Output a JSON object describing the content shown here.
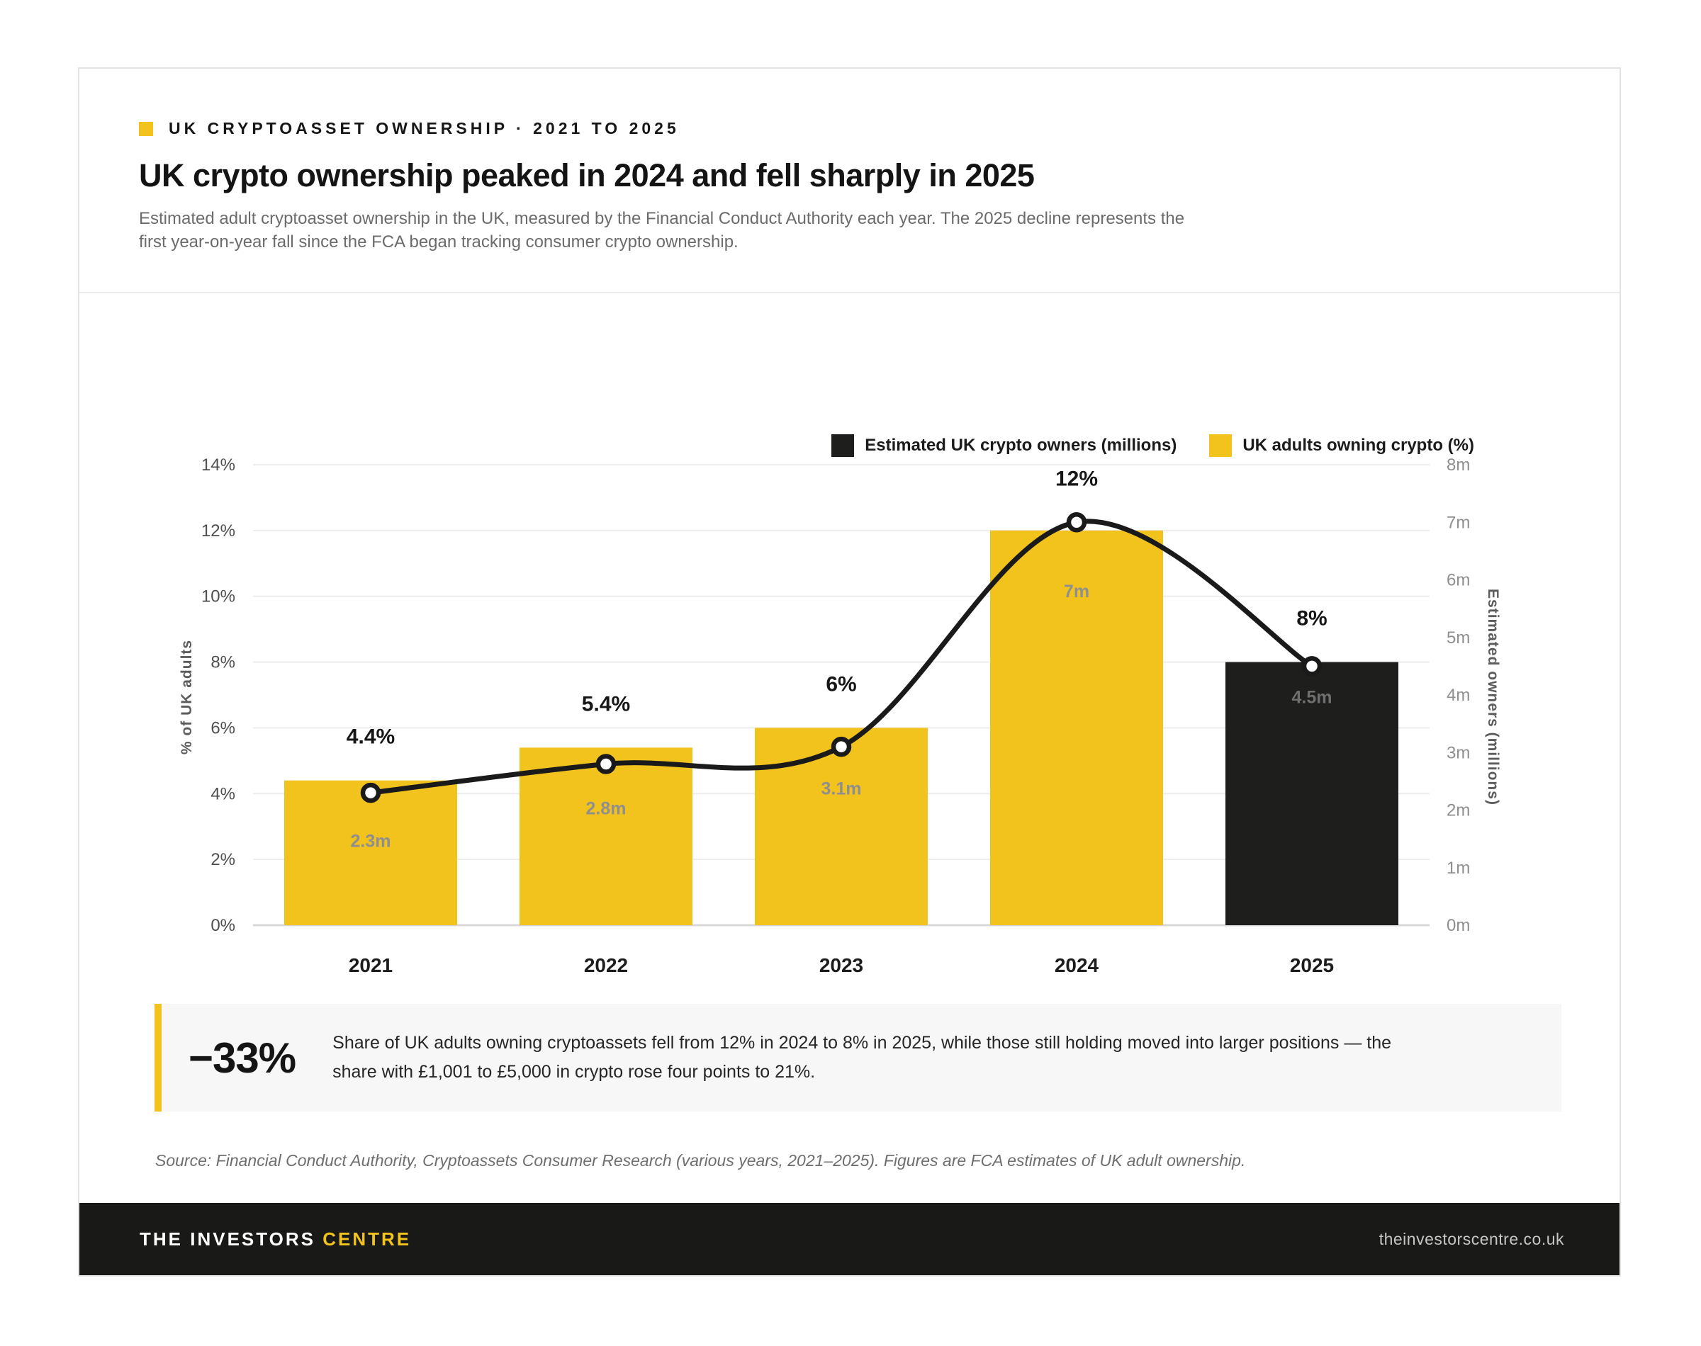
{
  "header": {
    "kicker": "UK CRYPTOASSET OWNERSHIP · 2021 TO 2025",
    "title": "UK crypto ownership peaked in 2024 and fell sharply in 2025",
    "subtitle": "Estimated adult cryptoasset ownership in the UK, measured by the Financial Conduct Authority each year. The 2025 decline represents the first year-on-year fall since the FCA began tracking consumer crypto ownership."
  },
  "legend": [
    {
      "label": "Estimated UK crypto owners (millions)",
      "color": "#1E1E1C"
    },
    {
      "label": "UK adults owning crypto (%)",
      "color": "#F2C21D"
    }
  ],
  "chart_data": {
    "type": "bar",
    "categories": [
      "2021",
      "2022",
      "2023",
      "2024",
      "2025"
    ],
    "series": [
      {
        "name": "UK adults owning crypto (%)",
        "type": "bar",
        "axis": "left",
        "values": [
          4.4,
          5.4,
          6,
          12,
          8
        ],
        "labels": [
          "4.4%",
          "5.4%",
          "6%",
          "12%",
          "8%"
        ]
      },
      {
        "name": "Estimated UK crypto owners (millions)",
        "type": "line",
        "axis": "right",
        "values": [
          2.3,
          2.8,
          3.1,
          7,
          4.5
        ],
        "labels": [
          "2.3m",
          "2.8m",
          "3.1m",
          "7m",
          "4.5m"
        ]
      }
    ],
    "left_axis": {
      "label": "% of UK adults",
      "min": 0,
      "max": 14,
      "tick_values": [
        0,
        2,
        4,
        6,
        8,
        10,
        12,
        14
      ],
      "tick_labels": [
        "0%",
        "2%",
        "4%",
        "6%",
        "8%",
        "10%",
        "12%",
        "14%"
      ]
    },
    "right_axis": {
      "label": "Estimated owners (millions)",
      "min": 0,
      "max": 8,
      "tick_values": [
        0,
        1,
        2,
        3,
        4,
        5,
        6,
        7,
        8
      ],
      "tick_labels": [
        "0m",
        "1m",
        "2m",
        "3m",
        "4m",
        "5m",
        "6m",
        "7m",
        "8m"
      ]
    },
    "highlight_category": "2025",
    "bar_color": "#F2C21D",
    "highlight_bar_color": "#1E1E1C",
    "line_color": "#1A1A1A",
    "grid": true,
    "legend_position": "top-right"
  },
  "callout": {
    "stat": "−33%",
    "text": "Share of UK adults owning cryptoassets fell from 12% in 2024 to 8% in 2025, while those still holding moved into larger positions — the share with £1,001 to £5,000 in crypto rose four points to 21%."
  },
  "source": "Source: Financial Conduct Authority, Cryptoassets Consumer Research (various years, 2021–2025). Figures are FCA estimates of UK adult ownership.",
  "footer": {
    "brand": "THE INVESTORS",
    "brand_accent": "CENTRE",
    "url": "theinvestorscentre.co.uk"
  },
  "colors": {
    "accent_yellow": "#F2C21D",
    "near_black": "#1E1E1C",
    "card_border": "#e4e4e4",
    "gridline": "#ededed",
    "baseline": "#d8d8d8",
    "muted_text": "#6b6b6b",
    "callout_bg": "#f7f7f7",
    "footer_bg": "#191917"
  }
}
